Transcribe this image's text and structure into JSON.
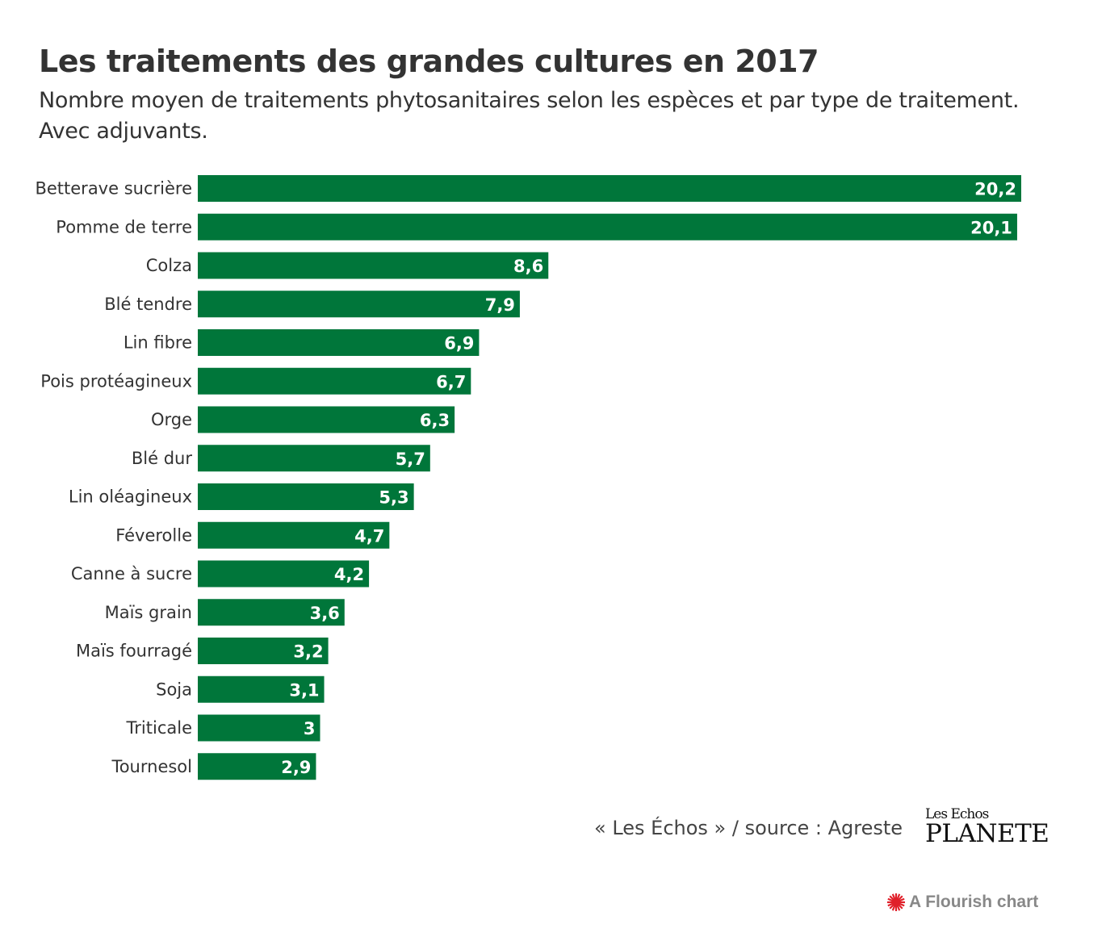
{
  "chart_data": {
    "type": "bar",
    "orientation": "horizontal",
    "title": "Les traitements des grandes cultures en 2017",
    "subtitle": "Nombre moyen de traitements phytosanitaires selon les espèces et par type de traitement. Avec adjuvants.",
    "categories": [
      "Betterave sucrière",
      "Pomme de terre",
      "Colza",
      "Blé tendre",
      "Lin fibre",
      "Pois protéagineux",
      "Orge",
      "Blé dur",
      "Lin oléagineux",
      "Féverolle",
      "Canne à sucre",
      "Maïs grain",
      "Maïs fourragé",
      "Soja",
      "Triticale",
      "Tournesol"
    ],
    "values": [
      20.2,
      20.1,
      8.6,
      7.9,
      6.9,
      6.7,
      6.3,
      5.7,
      5.3,
      4.7,
      4.2,
      3.6,
      3.2,
      3.1,
      3,
      2.9
    ],
    "value_labels": [
      "20,2",
      "20,1",
      "8,6",
      "7,9",
      "6,9",
      "6,7",
      "6,3",
      "5,7",
      "5,3",
      "4,7",
      "4,2",
      "3,6",
      "3,2",
      "3,1",
      "3",
      "2,9"
    ],
    "xlim": [
      0,
      20.2
    ],
    "grid": false,
    "bar_color": "#00763a"
  },
  "footer": {
    "source": "« Les Échos » / source : Agreste",
    "logo_line1": "Les Echos",
    "logo_line2": "PLANETE",
    "flourish": "A Flourish chart",
    "flourish_icon_color": "#e0202a"
  }
}
